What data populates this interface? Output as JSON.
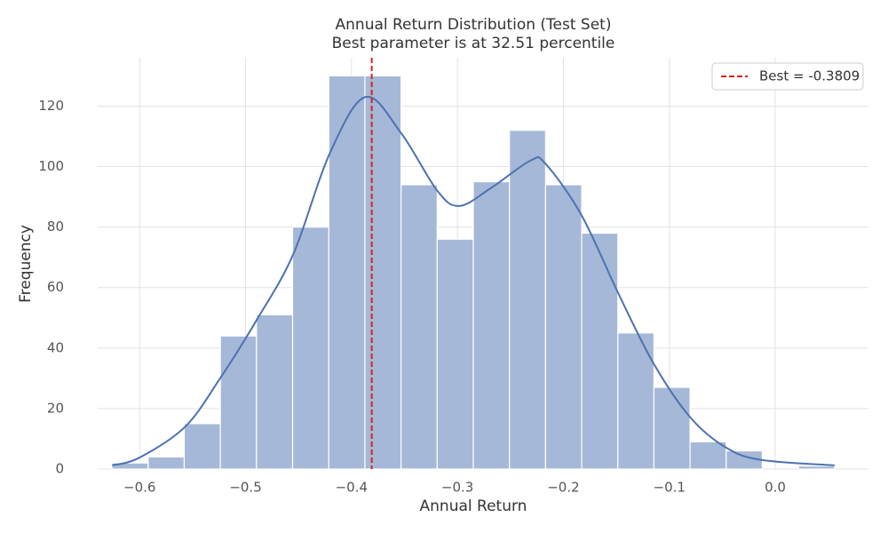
{
  "chart_data": {
    "type": "histogram",
    "title": "Annual Return Distribution (Test Set)",
    "subtitle": "Best parameter is at 32.51 percentile",
    "x_label": "Annual Return",
    "y_label": "Frequency",
    "bins": [
      -0.6261,
      -0.592,
      -0.5579,
      -0.5238,
      -0.4897,
      -0.4556,
      -0.4214,
      -0.3873,
      -0.3532,
      -0.3191,
      -0.285,
      -0.2509,
      -0.2168,
      -0.1827,
      -0.1486,
      -0.1145,
      -0.0804,
      -0.0463,
      -0.0122,
      0.0219,
      0.056
    ],
    "values": [
      2,
      4,
      15,
      44,
      51,
      80,
      130,
      130,
      94,
      76,
      95,
      112,
      94,
      78,
      45,
      27,
      9,
      6,
      0,
      1
    ],
    "color": "#a5b8d7",
    "kde": {
      "color": "#4c72b0",
      "x": [
        -0.626,
        -0.6,
        -0.557,
        -0.524,
        -0.49,
        -0.455,
        -0.421,
        -0.387,
        -0.353,
        -0.319,
        -0.298,
        -0.268,
        -0.231,
        -0.217,
        -0.183,
        -0.148,
        -0.115,
        -0.08,
        -0.046,
        -0.013,
        0.056
      ],
      "values": [
        1.2,
        3.8,
        14,
        30,
        49,
        71,
        104,
        123,
        111,
        92,
        87,
        93,
        102,
        101,
        84,
        58,
        35,
        17,
        7,
        3,
        1.2
      ]
    },
    "best_line": {
      "name": "Best = -0.3809",
      "value": -0.3809,
      "color": "#d62020"
    },
    "xlim": [
      -0.6396,
      0.088
    ],
    "ylim": [
      0,
      136
    ],
    "xticks": [
      {
        "value": -0.6,
        "label": "−0.6"
      },
      {
        "value": -0.5,
        "label": "−0.5"
      },
      {
        "value": -0.4,
        "label": "−0.4"
      },
      {
        "value": -0.3,
        "label": "−0.3"
      },
      {
        "value": -0.2,
        "label": "−0.2"
      },
      {
        "value": -0.1,
        "label": "−0.1"
      },
      {
        "value": 0,
        "label": "0.0"
      }
    ],
    "yticks": [
      0,
      20,
      40,
      60,
      80,
      100,
      120
    ],
    "grid": true,
    "legend": "upper right"
  }
}
